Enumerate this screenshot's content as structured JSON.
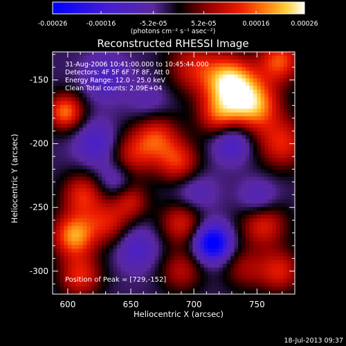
{
  "chart_data": {
    "type": "heatmap",
    "title": "Reconstructed RHESSI Image",
    "colorbar": {
      "ticks": [
        "-0.00026",
        "-0.00016",
        "-5.2e-05",
        "5.2e-05",
        "0.00016",
        "0.00026"
      ],
      "tick_values": [
        -0.00026,
        -0.00016,
        -5.2e-05,
        5.2e-05,
        0.00016,
        0.00026
      ],
      "range": [
        -0.00026,
        0.00026
      ],
      "unit_label": "(photons cm⁻² s⁻¹ asec⁻²)"
    },
    "xlabel": "Heliocentric X (arcsec)",
    "ylabel": "Heliocentric Y (arcsec)",
    "xlim": [
      588,
      780
    ],
    "ylim": [
      -318,
      -128
    ],
    "xticks": [
      600,
      650,
      700,
      750
    ],
    "xtick_labels": [
      "600",
      "650",
      "700",
      "750"
    ],
    "yticks": [
      -150,
      -200,
      -250,
      -300
    ],
    "ytick_labels": [
      "-150",
      "-200",
      "-250",
      "-300"
    ],
    "annotations": [
      "31-Aug-2006 10:41:00.000 to 10:45:44.000",
      "Detectors: 4F 5F 6F 7F 8F, Att 0",
      "Energy Range: 12.0 - 25.0 keV",
      "Clean     Total counts: 2.09E+04"
    ],
    "peak_label": "Position of Peak = [729,-152]",
    "peak": [
      729,
      -152
    ],
    "grid": false,
    "legend": "top colorbar",
    "sources": [
      {
        "x": 729,
        "y": -152,
        "v": 0.00026,
        "s": 14
      },
      {
        "x": 748,
        "y": -170,
        "v": 0.00022,
        "s": 14
      },
      {
        "x": 720,
        "y": -178,
        "v": 0.00016,
        "s": 12
      },
      {
        "x": 768,
        "y": -135,
        "v": 0.00018,
        "s": 12
      },
      {
        "x": 770,
        "y": -200,
        "v": 0.00015,
        "s": 14
      },
      {
        "x": 700,
        "y": -140,
        "v": 0.00013,
        "s": 15
      },
      {
        "x": 670,
        "y": -195,
        "v": 0.00016,
        "s": 13
      },
      {
        "x": 688,
        "y": -215,
        "v": 0.00015,
        "s": 12
      },
      {
        "x": 650,
        "y": -210,
        "v": 0.00012,
        "s": 13
      },
      {
        "x": 598,
        "y": -175,
        "v": 0.0002,
        "s": 10
      },
      {
        "x": 612,
        "y": -240,
        "v": 0.00015,
        "s": 12
      },
      {
        "x": 605,
        "y": -272,
        "v": 0.00022,
        "s": 12
      },
      {
        "x": 632,
        "y": -262,
        "v": 0.00013,
        "s": 12
      },
      {
        "x": 650,
        "y": -245,
        "v": 0.00012,
        "s": 10
      },
      {
        "x": 690,
        "y": -262,
        "v": 0.00014,
        "s": 12
      },
      {
        "x": 755,
        "y": -262,
        "v": 0.00016,
        "s": 13
      },
      {
        "x": 768,
        "y": -300,
        "v": 0.00014,
        "s": 12
      },
      {
        "x": 610,
        "y": -304,
        "v": 0.00015,
        "s": 12
      },
      {
        "x": 690,
        "y": -300,
        "v": 0.00011,
        "s": 12
      },
      {
        "x": 740,
        "y": -298,
        "v": 9e-05,
        "s": 12
      },
      {
        "x": 715,
        "y": -278,
        "v": -0.00026,
        "s": 10
      },
      {
        "x": 730,
        "y": -198,
        "v": -0.00012,
        "s": 11
      },
      {
        "x": 630,
        "y": -148,
        "v": -9e-05,
        "s": 12
      },
      {
        "x": 623,
        "y": -200,
        "v": -0.0001,
        "s": 12
      },
      {
        "x": 752,
        "y": -245,
        "v": -0.0001,
        "s": 11
      },
      {
        "x": 655,
        "y": -282,
        "v": -9e-05,
        "s": 12
      },
      {
        "x": 638,
        "y": -228,
        "v": -8e-05,
        "s": 11
      },
      {
        "x": 700,
        "y": -238,
        "v": -7e-05,
        "s": 12
      },
      {
        "x": 665,
        "y": -168,
        "v": -5e-05,
        "s": 12
      }
    ]
  },
  "footer": {
    "timestamp": "18-Jul-2013 09:37"
  },
  "colors": {
    "background": "#000000",
    "foreground": "#ffffff"
  }
}
